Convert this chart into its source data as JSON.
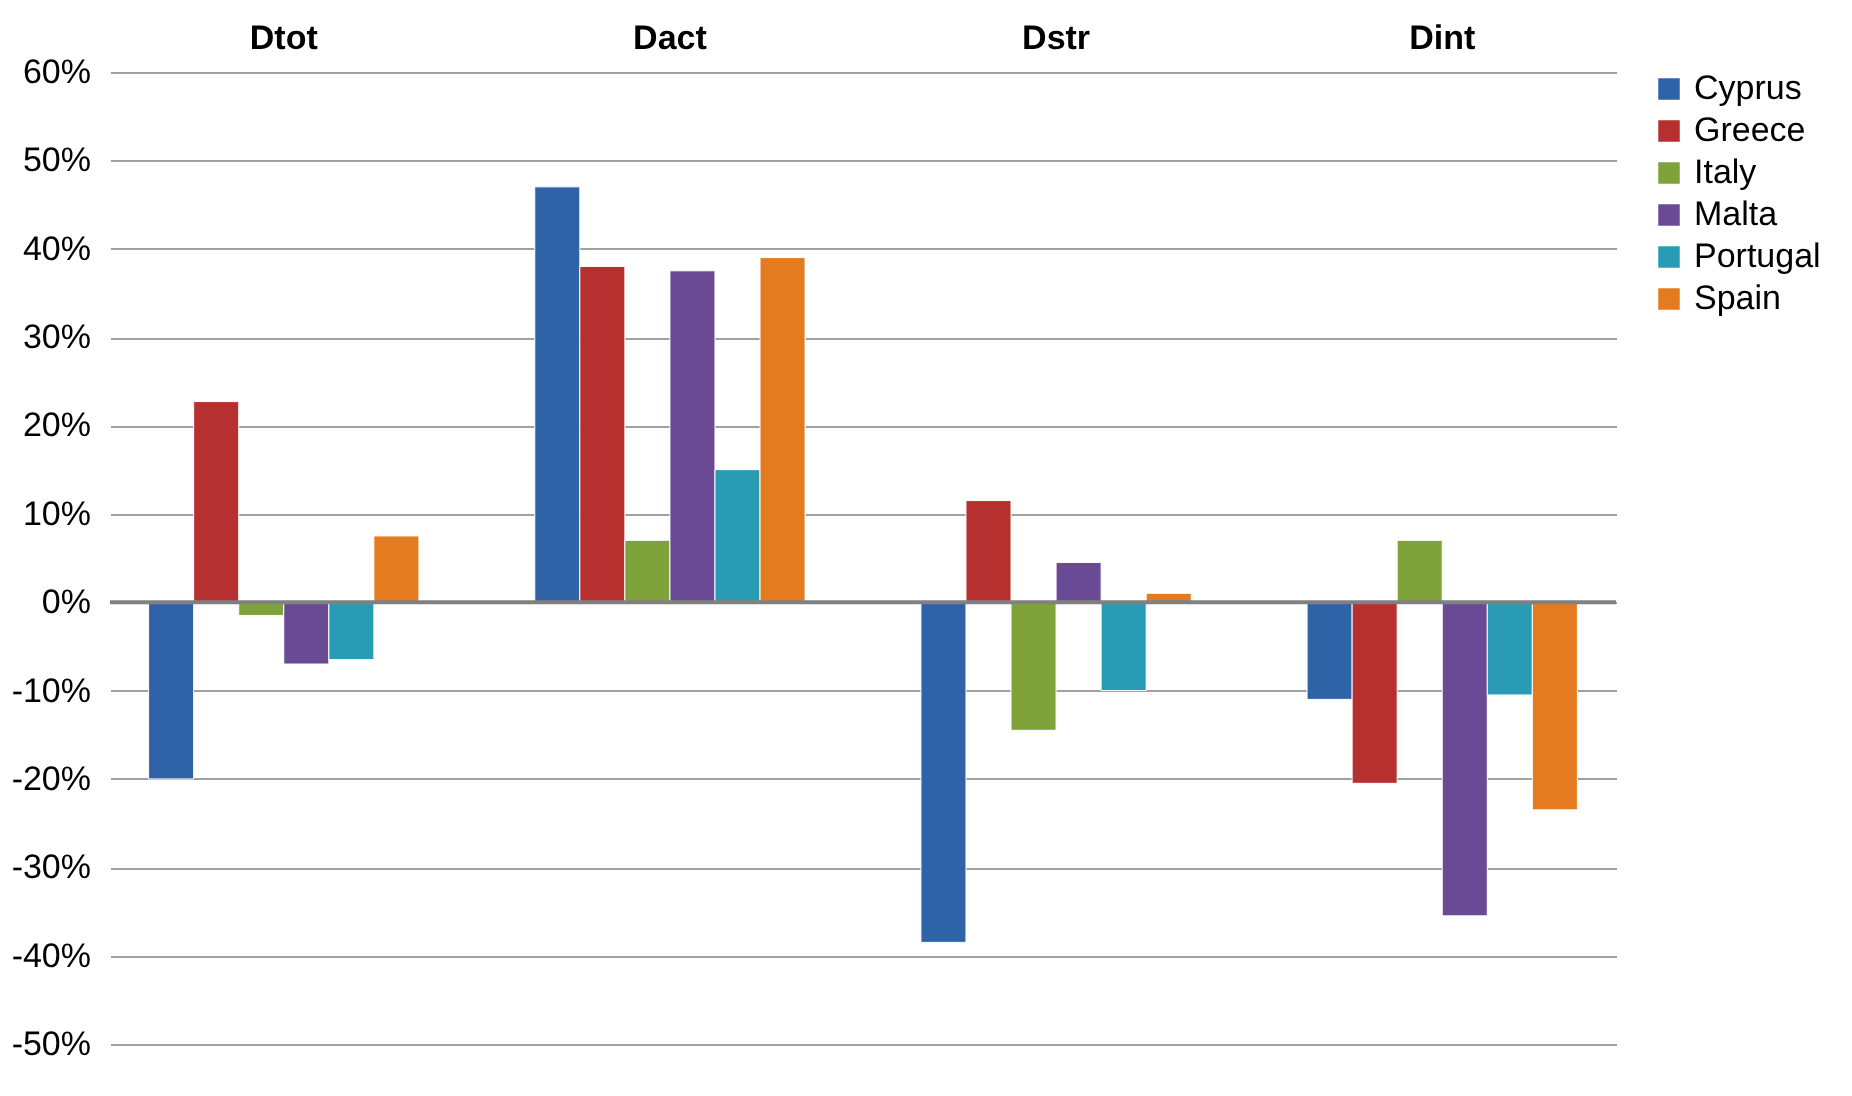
{
  "chart_data": {
    "type": "bar",
    "categories": [
      "Dtot",
      "Dact",
      "Dstr",
      "Dint"
    ],
    "series": [
      {
        "name": "Cyprus",
        "color": "#2e63a8",
        "values": [
          -20,
          47,
          -38.5,
          -11
        ]
      },
      {
        "name": "Greece",
        "color": "#b5302f",
        "values": [
          22.7,
          38,
          11.5,
          -20.5
        ]
      },
      {
        "name": "Italy",
        "color": "#7fa23a",
        "values": [
          -1.5,
          7,
          -14.5,
          7
        ]
      },
      {
        "name": "Malta",
        "color": "#6a4a94",
        "values": [
          -7,
          37.5,
          4.5,
          -35.5
        ]
      },
      {
        "name": "Portugal",
        "color": "#2a9bb5",
        "values": [
          -6.5,
          15,
          -10,
          -10.5
        ]
      },
      {
        "name": "Spain",
        "color": "#e47b1f",
        "values": [
          7.5,
          39,
          1,
          -23.5
        ]
      }
    ],
    "ylim": [
      -50,
      60
    ],
    "yticks": [
      {
        "value": -50,
        "label": "-50%"
      },
      {
        "value": -40,
        "label": "-40%"
      },
      {
        "value": -30,
        "label": "-30%"
      },
      {
        "value": -20,
        "label": "-20%"
      },
      {
        "value": -10,
        "label": "-10%"
      },
      {
        "value": 0,
        "label": "0%"
      },
      {
        "value": 10,
        "label": "10%"
      },
      {
        "value": 20,
        "label": "20%"
      },
      {
        "value": 30,
        "label": "30%"
      },
      {
        "value": 40,
        "label": "40%"
      },
      {
        "value": 50,
        "label": "50%"
      },
      {
        "value": 60,
        "label": "60%"
      }
    ],
    "grid": "y",
    "legend": "right"
  }
}
